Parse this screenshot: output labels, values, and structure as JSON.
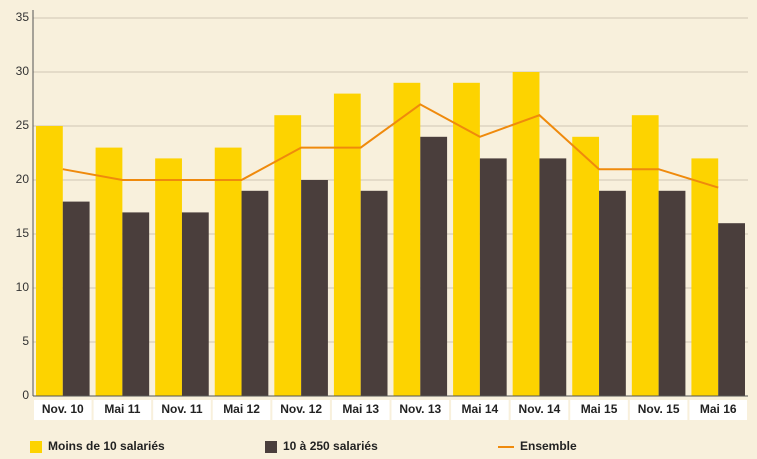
{
  "chart_data": {
    "type": "bar",
    "categories": [
      "Nov. 10",
      "Mai 11",
      "Nov. 11",
      "Mai 12",
      "Nov. 12",
      "Mai 13",
      "Nov. 13",
      "Mai 14",
      "Nov. 14",
      "Mai 15",
      "Nov. 15",
      "Mai 16"
    ],
    "series": [
      {
        "name": "Moins de 10 salariés",
        "color": "#fdd300",
        "type": "bar",
        "values": [
          25,
          23,
          22,
          23,
          26,
          28,
          29,
          29,
          30,
          24,
          26,
          22
        ]
      },
      {
        "name": "10 à 250 salariés",
        "color": "#4a3e3c",
        "type": "bar",
        "values": [
          18,
          17,
          17,
          19,
          20,
          19,
          24,
          22,
          22,
          19,
          19,
          16
        ]
      },
      {
        "name": "Ensemble",
        "color": "#ef8a0c",
        "type": "line",
        "values": [
          21,
          20,
          20,
          20,
          23,
          23,
          27,
          24,
          26,
          21,
          21,
          19.3
        ]
      }
    ],
    "ylim": [
      0,
      35
    ],
    "yticks": [
      0,
      5,
      10,
      15,
      20,
      25,
      30,
      35
    ],
    "grid": true,
    "legend": "bottom"
  }
}
